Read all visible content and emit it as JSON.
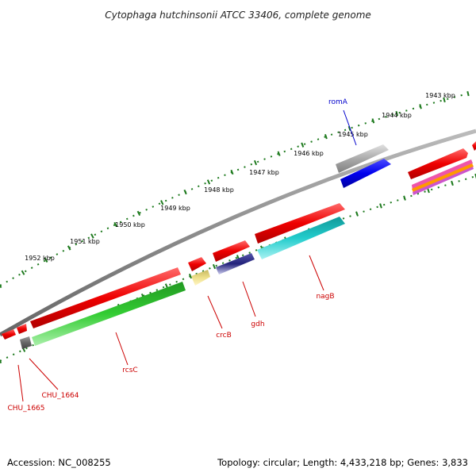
{
  "title": "Cytophaga hutchinsonii ATCC 33406, complete genome",
  "footer": {
    "accession": "Accession: NC_008255",
    "summary": "Topology: circular; Length: 4,433,218 bp; Genes: 3,833"
  },
  "ruler": {
    "labels": [
      "1943 kbp",
      "1944 kbp",
      "1945 kbp",
      "1946 kbp",
      "1947 kbp",
      "1948 kbp",
      "1949 kbp",
      "1950 kbp",
      "1951 kbp",
      "1952 kbp"
    ]
  },
  "gene_labels": [
    {
      "id": "romA",
      "text": "romA",
      "color": "#0000cc"
    },
    {
      "id": "nagB",
      "text": "nagB",
      "color": "#cc0000"
    },
    {
      "id": "gdh",
      "text": "gdh",
      "color": "#cc0000"
    },
    {
      "id": "crcB",
      "text": "crcB",
      "color": "#cc0000"
    },
    {
      "id": "rcsC",
      "text": "rcsC",
      "color": "#cc0000"
    },
    {
      "id": "CHU_1664",
      "text": "CHU_1664",
      "color": "#cc0000"
    },
    {
      "id": "CHU_1665",
      "text": "CHU_1665",
      "color": "#cc0000"
    }
  ],
  "colors": {
    "backbone": "#8c8c8c",
    "tick": "#1e7a1e",
    "gene_red": "#ee0000",
    "gene_green": "#33cc33",
    "gene_cyan": "#22cccc",
    "gene_blue": "#0000ee",
    "gene_grey": "#aaaaaa",
    "gene_yellow": "#eee08a",
    "gene_navy": "#22227a"
  }
}
